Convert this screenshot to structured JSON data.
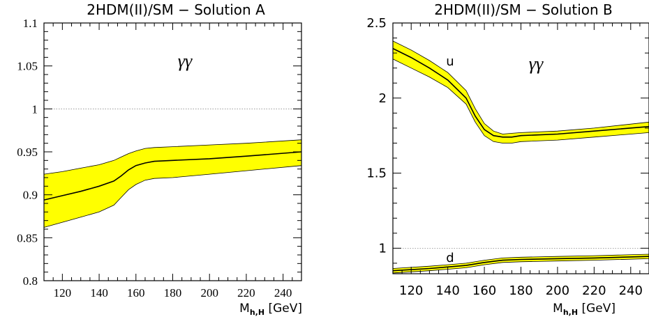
{
  "chart_data": [
    {
      "type": "area",
      "title": "2HDM(II)/SM − Solution A",
      "annotation": "γγ",
      "xlabel_main": "M",
      "xlabel_sub": "h,H",
      "xlabel_unit": " [GeV]",
      "xlim": [
        110,
        250
      ],
      "ylim": [
        0.8,
        1.1
      ],
      "x_ticks": [
        120,
        140,
        160,
        180,
        200,
        220,
        240
      ],
      "x_tick_labels": [
        "120",
        "140",
        "160",
        "180",
        "200",
        "220",
        "240"
      ],
      "y_ticks": [
        0.8,
        0.85,
        0.9,
        0.95,
        1,
        1.05,
        1.1
      ],
      "y_tick_labels": [
        "0.8",
        "0.85",
        "0.9",
        "0.95",
        "1",
        "1.05",
        "1.1"
      ],
      "reference_line": 1,
      "series": [
        {
          "label": "",
          "x": [
            110,
            120,
            130,
            140,
            148,
            152,
            156,
            160,
            165,
            170,
            180,
            200,
            220,
            250
          ],
          "central": [
            0.894,
            0.899,
            0.904,
            0.91,
            0.916,
            0.922,
            0.929,
            0.934,
            0.937,
            0.939,
            0.94,
            0.942,
            0.945,
            0.95
          ],
          "upper": [
            0.924,
            0.927,
            0.931,
            0.935,
            0.94,
            0.944,
            0.948,
            0.951,
            0.954,
            0.955,
            0.956,
            0.958,
            0.96,
            0.964
          ],
          "lower": [
            0.862,
            0.868,
            0.874,
            0.88,
            0.888,
            0.897,
            0.906,
            0.912,
            0.917,
            0.919,
            0.92,
            0.924,
            0.928,
            0.934
          ]
        }
      ]
    },
    {
      "type": "area",
      "title": "2HDM(II)/SM − Solution B",
      "annotation": "γγ",
      "xlabel_main": "M",
      "xlabel_sub": "h,H",
      "xlabel_unit": " [GeV]",
      "xlim": [
        110,
        250
      ],
      "ylim": [
        0.83,
        2.5
      ],
      "x_ticks": [
        120,
        140,
        160,
        180,
        200,
        220,
        240
      ],
      "x_tick_labels": [
        "120",
        "140",
        "160",
        "180",
        "200",
        "220",
        "240"
      ],
      "y_ticks": [
        1,
        1.5,
        2,
        2.5
      ],
      "y_tick_labels": [
        "1",
        "1.5",
        "2",
        "2.5"
      ],
      "reference_line": 1,
      "series": [
        {
          "label": "u",
          "x": [
            110,
            120,
            130,
            140,
            150,
            155,
            160,
            165,
            170,
            175,
            180,
            200,
            220,
            250
          ],
          "central": [
            2.33,
            2.27,
            2.2,
            2.12,
            2.0,
            1.88,
            1.79,
            1.75,
            1.74,
            1.74,
            1.75,
            1.76,
            1.78,
            1.81
          ],
          "upper": [
            2.38,
            2.32,
            2.25,
            2.17,
            2.05,
            1.93,
            1.83,
            1.78,
            1.76,
            1.765,
            1.77,
            1.78,
            1.8,
            1.84
          ],
          "lower": [
            2.26,
            2.2,
            2.14,
            2.07,
            1.96,
            1.84,
            1.75,
            1.71,
            1.7,
            1.7,
            1.71,
            1.72,
            1.74,
            1.77
          ]
        },
        {
          "label": "d",
          "x": [
            110,
            130,
            150,
            160,
            170,
            180,
            200,
            220,
            250
          ],
          "central": [
            0.85,
            0.865,
            0.885,
            0.905,
            0.92,
            0.925,
            0.93,
            0.935,
            0.945
          ],
          "upper": [
            0.865,
            0.88,
            0.9,
            0.92,
            0.935,
            0.94,
            0.945,
            0.95,
            0.96
          ],
          "lower": [
            0.835,
            0.85,
            0.87,
            0.89,
            0.905,
            0.91,
            0.915,
            0.92,
            0.93
          ]
        }
      ]
    }
  ]
}
